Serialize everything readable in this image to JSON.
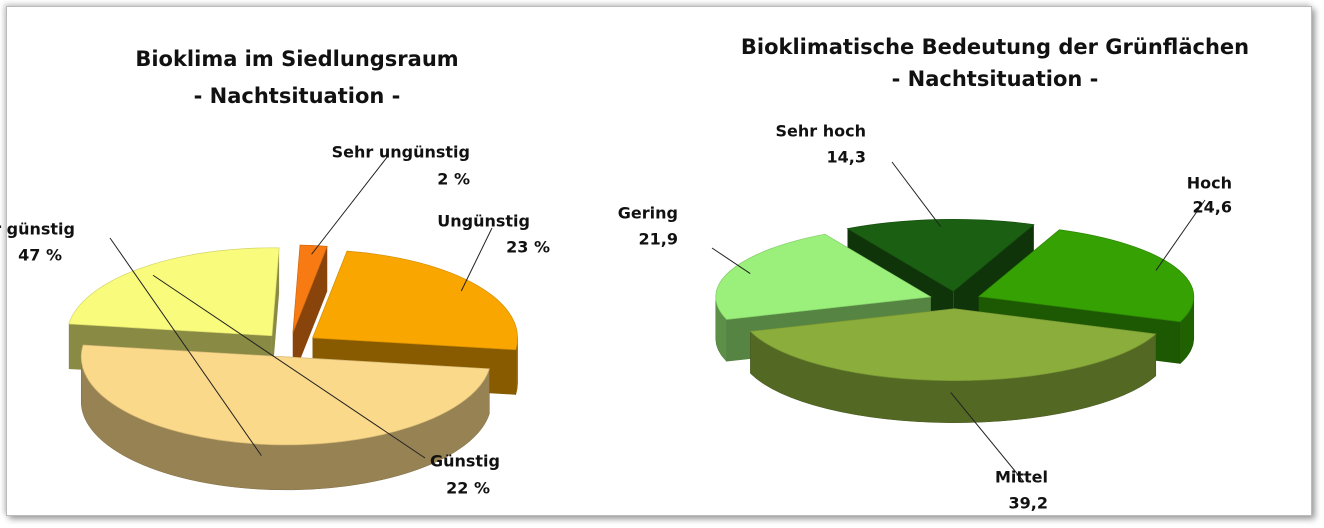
{
  "chart_data": [
    {
      "type": "pie3d",
      "title": "Bioklima im Siedlungsraum",
      "subtitle": "- Nachtsituation -",
      "categories": [
        "Sehr ungünstig",
        "Ungünstig",
        "Weniger günstig",
        "Günstig"
      ],
      "values": [
        2,
        23,
        47,
        22
      ],
      "value_labels": [
        "2 %",
        "23 %",
        "47 %",
        "22 %"
      ],
      "colors": [
        "#f77b12",
        "#f9a600",
        "#fbd98a",
        "#f9fb7c"
      ]
    },
    {
      "type": "pie3d",
      "title": "Bioklimatische Bedeutung der Grünflächen",
      "subtitle": "- Nachtsituation -",
      "categories": [
        "Hoch",
        "Mittel",
        "Gering",
        "Sehr hoch"
      ],
      "values": [
        24.6,
        39.2,
        21.9,
        14.3
      ],
      "value_labels": [
        "24,6",
        "39,2",
        "21,9",
        "14,3"
      ],
      "colors": [
        "#35a103",
        "#8aad3b",
        "#9af07a",
        "#1b5f12"
      ]
    }
  ]
}
